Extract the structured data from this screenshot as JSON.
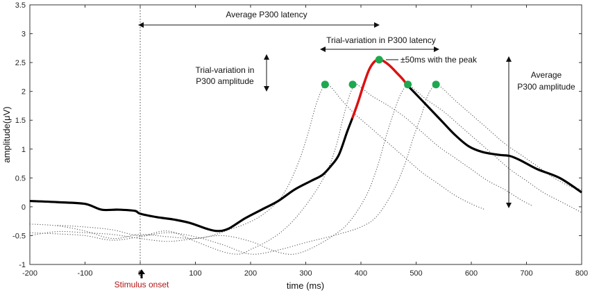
{
  "chart_data": {
    "type": "line",
    "title": "",
    "xlabel": "time (ms)",
    "ylabel": "amplitude(μV)",
    "xlim": [
      -200,
      800
    ],
    "ylim": [
      -1,
      3.5
    ],
    "xticks": [
      -200,
      -100,
      0,
      100,
      200,
      300,
      400,
      500,
      600,
      700,
      800
    ],
    "yticks": [
      -1,
      -0.5,
      0,
      0.5,
      1,
      1.5,
      2,
      2.5,
      3,
      3.5
    ],
    "grid": false,
    "stimulus_onset_ms": 0,
    "peak_window_ms": [
      382,
      485
    ],
    "series": [
      {
        "name": "average",
        "style": "solid",
        "color": "#000000",
        "points": [
          [
            -200,
            0.1
          ],
          [
            -150,
            0.08
          ],
          [
            -100,
            0.05
          ],
          [
            -70,
            -0.05
          ],
          [
            -40,
            -0.05
          ],
          [
            -10,
            -0.07
          ],
          [
            0,
            -0.12
          ],
          [
            30,
            -0.18
          ],
          [
            60,
            -0.22
          ],
          [
            90,
            -0.28
          ],
          [
            120,
            -0.38
          ],
          [
            140,
            -0.42
          ],
          [
            160,
            -0.38
          ],
          [
            190,
            -0.2
          ],
          [
            220,
            -0.05
          ],
          [
            250,
            0.1
          ],
          [
            280,
            0.3
          ],
          [
            310,
            0.45
          ],
          [
            330,
            0.55
          ],
          [
            345,
            0.7
          ],
          [
            360,
            0.9
          ],
          [
            375,
            1.3
          ],
          [
            385,
            1.55
          ],
          [
            395,
            1.82
          ],
          [
            405,
            2.12
          ],
          [
            415,
            2.38
          ],
          [
            425,
            2.52
          ],
          [
            435,
            2.55
          ],
          [
            445,
            2.5
          ],
          [
            455,
            2.42
          ],
          [
            465,
            2.32
          ],
          [
            475,
            2.22
          ],
          [
            485,
            2.1
          ],
          [
            500,
            1.95
          ],
          [
            520,
            1.75
          ],
          [
            545,
            1.5
          ],
          [
            570,
            1.25
          ],
          [
            595,
            1.05
          ],
          [
            620,
            0.95
          ],
          [
            650,
            0.9
          ],
          [
            670,
            0.88
          ],
          [
            690,
            0.8
          ],
          [
            720,
            0.65
          ],
          [
            760,
            0.5
          ],
          [
            800,
            0.25
          ]
        ]
      },
      {
        "name": "trial-1",
        "style": "dotted",
        "color": "#555555",
        "points": [
          [
            -200,
            -0.3
          ],
          [
            -150,
            -0.33
          ],
          [
            -100,
            -0.42
          ],
          [
            -50,
            -0.55
          ],
          [
            0,
            -0.48
          ],
          [
            50,
            -0.52
          ],
          [
            100,
            -0.55
          ],
          [
            130,
            -0.5
          ],
          [
            160,
            -0.4
          ],
          [
            190,
            -0.3
          ],
          [
            220,
            -0.15
          ],
          [
            250,
            0.1
          ],
          [
            270,
            0.4
          ],
          [
            290,
            0.85
          ],
          [
            305,
            1.3
          ],
          [
            318,
            1.75
          ],
          [
            330,
            2.05
          ],
          [
            338,
            2.12
          ],
          [
            348,
            2.05
          ],
          [
            365,
            1.85
          ],
          [
            390,
            1.6
          ],
          [
            420,
            1.35
          ],
          [
            450,
            1.1
          ],
          [
            480,
            0.85
          ],
          [
            510,
            0.6
          ],
          [
            540,
            0.4
          ],
          [
            570,
            0.2
          ],
          [
            600,
            0.05
          ],
          [
            625,
            -0.05
          ]
        ]
      },
      {
        "name": "trial-2",
        "style": "dotted",
        "color": "#555555",
        "points": [
          [
            -150,
            -0.32
          ],
          [
            -100,
            -0.35
          ],
          [
            -50,
            -0.4
          ],
          [
            0,
            -0.5
          ],
          [
            50,
            -0.42
          ],
          [
            100,
            -0.6
          ],
          [
            150,
            -0.78
          ],
          [
            180,
            -0.82
          ],
          [
            200,
            -0.74
          ],
          [
            230,
            -0.6
          ],
          [
            260,
            -0.4
          ],
          [
            290,
            -0.1
          ],
          [
            320,
            0.3
          ],
          [
            340,
            0.65
          ],
          [
            355,
            1.05
          ],
          [
            368,
            1.55
          ],
          [
            380,
            1.95
          ],
          [
            390,
            2.12
          ],
          [
            400,
            2.07
          ],
          [
            420,
            1.92
          ],
          [
            450,
            1.75
          ],
          [
            480,
            1.55
          ],
          [
            510,
            1.3
          ],
          [
            540,
            1.05
          ],
          [
            570,
            0.85
          ],
          [
            600,
            0.65
          ],
          [
            630,
            0.45
          ],
          [
            660,
            0.3
          ],
          [
            690,
            0.12
          ],
          [
            710,
            0.02
          ]
        ]
      },
      {
        "name": "trial-3",
        "style": "dotted",
        "color": "#555555",
        "points": [
          [
            -200,
            -0.5
          ],
          [
            -150,
            -0.43
          ],
          [
            -100,
            -0.45
          ],
          [
            -50,
            -0.48
          ],
          [
            0,
            -0.55
          ],
          [
            50,
            -0.6
          ],
          [
            100,
            -0.55
          ],
          [
            150,
            -0.5
          ],
          [
            200,
            -0.6
          ],
          [
            230,
            -0.72
          ],
          [
            255,
            -0.8
          ],
          [
            280,
            -0.82
          ],
          [
            310,
            -0.72
          ],
          [
            350,
            -0.5
          ],
          [
            380,
            -0.25
          ],
          [
            410,
            0.2
          ],
          [
            430,
            0.7
          ],
          [
            445,
            1.2
          ],
          [
            460,
            1.65
          ],
          [
            472,
            1.95
          ],
          [
            485,
            2.12
          ],
          [
            495,
            2.05
          ],
          [
            520,
            1.85
          ],
          [
            550,
            1.65
          ],
          [
            580,
            1.4
          ],
          [
            610,
            1.15
          ],
          [
            640,
            0.9
          ],
          [
            670,
            0.65
          ],
          [
            700,
            0.45
          ],
          [
            730,
            0.25
          ],
          [
            760,
            0.1
          ],
          [
            790,
            -0.05
          ],
          [
            800,
            -0.1
          ]
        ]
      },
      {
        "name": "trial-4",
        "style": "dotted",
        "color": "#555555",
        "points": [
          [
            -200,
            -0.45
          ],
          [
            -150,
            -0.47
          ],
          [
            -100,
            -0.5
          ],
          [
            -50,
            -0.58
          ],
          [
            0,
            -0.52
          ],
          [
            50,
            -0.45
          ],
          [
            100,
            -0.52
          ],
          [
            150,
            -0.66
          ],
          [
            200,
            -0.82
          ],
          [
            250,
            -0.75
          ],
          [
            300,
            -0.62
          ],
          [
            350,
            -0.5
          ],
          [
            400,
            -0.35
          ],
          [
            430,
            -0.15
          ],
          [
            460,
            0.3
          ],
          [
            480,
            0.75
          ],
          [
            495,
            1.2
          ],
          [
            510,
            1.6
          ],
          [
            522,
            1.95
          ],
          [
            536,
            2.12
          ],
          [
            548,
            2.05
          ],
          [
            570,
            1.85
          ],
          [
            600,
            1.6
          ],
          [
            630,
            1.35
          ],
          [
            660,
            1.1
          ],
          [
            690,
            0.9
          ],
          [
            720,
            0.7
          ],
          [
            750,
            0.5
          ],
          [
            780,
            0.35
          ],
          [
            800,
            0.3
          ]
        ]
      }
    ],
    "markers": [
      [
        335,
        2.12
      ],
      [
        385,
        2.12
      ],
      [
        433,
        2.55
      ],
      [
        485,
        2.12
      ],
      [
        536,
        2.12
      ]
    ],
    "marker_color": "#1ea84f",
    "highlight_color": "#e01010",
    "annotations": {
      "avg_latency": "Average P300 latency",
      "trial_latency": "Trial-variation in P300 latency",
      "trial_amp_line1": "Trial-variation in",
      "trial_amp_line2": "P300 amplitude",
      "peak_window": "±50ms with the peak",
      "avg_amp_line1": "Average",
      "avg_amp_line2": "P300 amplitude",
      "stimulus_onset": "Stimulus onset"
    }
  }
}
